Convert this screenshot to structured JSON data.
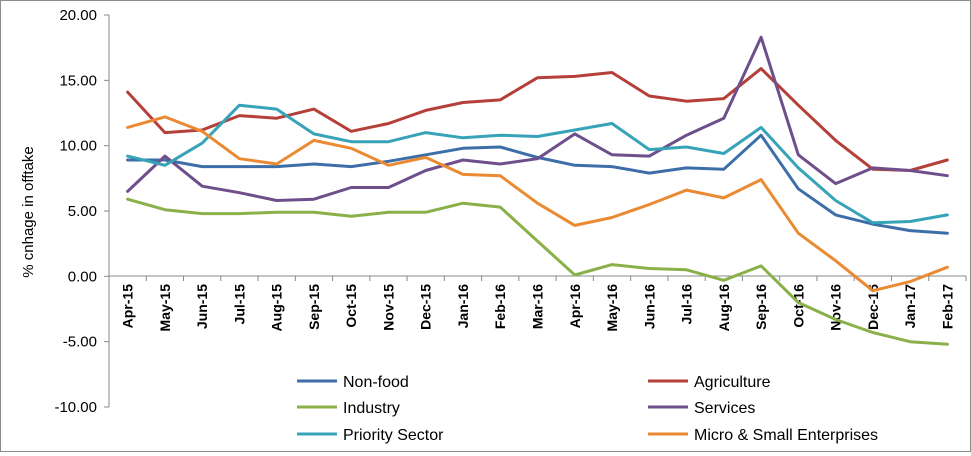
{
  "chart_data": {
    "type": "line",
    "title": "",
    "xlabel": "",
    "ylabel": "% cnhage in offtake",
    "ylim": [
      -10,
      20
    ],
    "yticks": [
      "20.00",
      "15.00",
      "10.00",
      "5.00",
      "0.00",
      "-5.00",
      "-10.00"
    ],
    "ytick_values": [
      20,
      15,
      10,
      5,
      0,
      -5,
      -10
    ],
    "categories": [
      "Apr-15",
      "May-15",
      "Jun-15",
      "Jul-15",
      "Aug-15",
      "Sep-15",
      "Oct-15",
      "Nov-15",
      "Dec-15",
      "Jan-16",
      "Feb-16",
      "Mar-16",
      "Apr-16",
      "May-16",
      "Jun-16",
      "Jul-16",
      "Aug-16",
      "Sep-16",
      "Oct-16",
      "Nov-16",
      "Dec-16",
      "Jan-17",
      "Feb-17"
    ],
    "grid": false,
    "legend_position": "bottom",
    "series": [
      {
        "name": "Non-food",
        "color": "#3d6ea8",
        "values": [
          8.9,
          8.9,
          8.4,
          8.4,
          8.4,
          8.6,
          8.4,
          8.8,
          9.3,
          9.8,
          9.9,
          9.1,
          8.5,
          8.4,
          7.9,
          8.3,
          8.2,
          10.8,
          6.7,
          4.7,
          4.0,
          3.5,
          3.3
        ]
      },
      {
        "name": "Agriculture",
        "color": "#b5403a",
        "values": [
          14.1,
          11.0,
          11.2,
          12.3,
          12.1,
          12.8,
          11.1,
          11.7,
          12.7,
          13.3,
          13.5,
          15.2,
          15.3,
          15.6,
          13.8,
          13.4,
          13.6,
          15.9,
          13.1,
          10.4,
          8.2,
          8.1,
          8.9
        ]
      },
      {
        "name": "Industry",
        "color": "#8ab04a",
        "values": [
          5.9,
          5.1,
          4.8,
          4.8,
          4.9,
          4.9,
          4.6,
          4.9,
          4.9,
          5.6,
          5.3,
          2.7,
          0.1,
          0.9,
          0.6,
          0.5,
          -0.3,
          0.8,
          -2.0,
          -3.3,
          -4.3,
          -5.0,
          -5.2
        ]
      },
      {
        "name": "Services",
        "color": "#6e4f8c",
        "values": [
          6.5,
          9.2,
          6.9,
          6.4,
          5.8,
          5.9,
          6.8,
          6.8,
          8.1,
          8.9,
          8.6,
          9.0,
          10.9,
          9.3,
          9.2,
          10.8,
          12.1,
          18.3,
          9.3,
          7.1,
          8.3,
          8.1,
          7.7
        ]
      },
      {
        "name": "Priority Sector",
        "color": "#36a3b8",
        "values": [
          9.2,
          8.5,
          10.2,
          13.1,
          12.8,
          10.9,
          10.3,
          10.3,
          11.0,
          10.6,
          10.8,
          10.7,
          11.2,
          11.7,
          9.7,
          9.9,
          9.4,
          11.4,
          8.3,
          5.8,
          4.1,
          4.2,
          4.7
        ]
      },
      {
        "name": "Micro & Small Enterprises",
        "color": "#ea8a32",
        "values": [
          11.4,
          12.2,
          11.1,
          9.0,
          8.6,
          10.4,
          9.8,
          8.5,
          9.1,
          7.8,
          7.7,
          5.6,
          3.9,
          4.5,
          5.5,
          6.6,
          6.0,
          7.4,
          3.3,
          1.2,
          -1.1,
          -0.4,
          0.7
        ]
      }
    ]
  }
}
